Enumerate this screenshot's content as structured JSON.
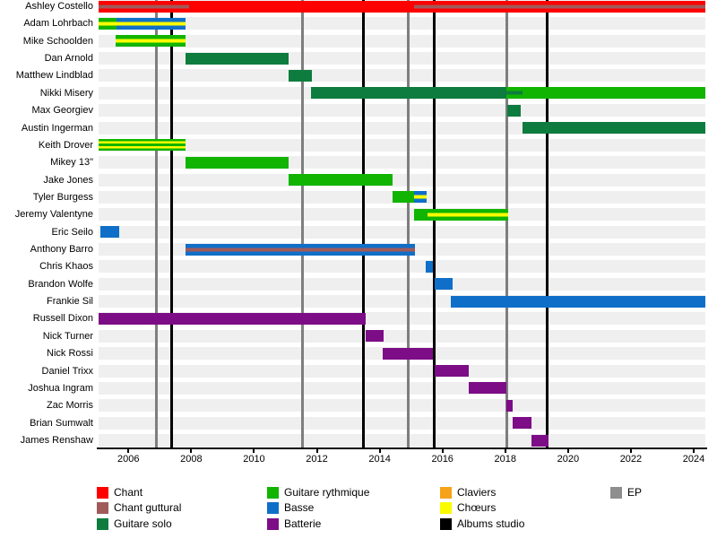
{
  "chart_data": {
    "type": "gantt-timeline",
    "title": "",
    "x_axis": {
      "start": 2005.05,
      "end": 2024.37,
      "ticks": [
        2006,
        2008,
        2010,
        2012,
        2014,
        2016,
        2018,
        2020,
        2022,
        2024
      ],
      "tick_labels": [
        "2006",
        "2008",
        "2010",
        "2012",
        "2014",
        "2016",
        "2018",
        "2020",
        "2022",
        "2024"
      ]
    },
    "palette": {
      "chant": "#fe0000",
      "chant_guttural": "#a05a5a",
      "guitare_solo": "#0e7c3e",
      "guitare_rythmique": "#11b400",
      "basse": "#0f6fc8",
      "batterie": "#7d0d86",
      "claviers": "#f6a21a",
      "choeurs": "#fbfb00",
      "albums_studio": "#000000",
      "ep": "#8e8e8e"
    },
    "album_lines": {
      "label": "Albums studio",
      "years": [
        2007.39,
        2013.47,
        2015.73,
        2019.32
      ]
    },
    "ep_lines": {
      "label": "EP",
      "years": [
        2006.88,
        2011.53,
        2014.91,
        2018.05
      ]
    },
    "members": [
      {
        "name": "Ashley Costello",
        "segments": [
          {
            "from": 2005.05,
            "to": 2007.93,
            "roles": [
              "chant",
              "chant_guttural",
              "chant"
            ]
          },
          {
            "from": 2007.93,
            "to": 2015.1,
            "roles": [
              "chant"
            ]
          },
          {
            "from": 2015.1,
            "to": 2024.37,
            "roles": [
              "chant",
              "chant_guttural",
              "chant"
            ]
          }
        ]
      },
      {
        "name": "Adam Lohrbach",
        "segments": [
          {
            "from": 2005.05,
            "to": 2005.62,
            "roles": [
              "guitare_rythmique",
              "choeurs",
              "guitare_rythmique"
            ]
          },
          {
            "from": 2005.62,
            "to": 2007.82,
            "roles": [
              "basse",
              "choeurs",
              "basse"
            ]
          }
        ]
      },
      {
        "name": "Mike Schoolden",
        "segments": [
          {
            "from": 2005.59,
            "to": 2007.82,
            "roles": [
              "guitare_rythmique",
              "choeurs",
              "guitare_rythmique"
            ]
          }
        ]
      },
      {
        "name": "Dan Arnold",
        "segments": [
          {
            "from": 2007.82,
            "to": 2011.1,
            "roles": [
              "guitare_solo"
            ]
          }
        ]
      },
      {
        "name": "Matthew Lindblad",
        "segments": [
          {
            "from": 2011.1,
            "to": 2011.84,
            "roles": [
              "guitare_solo"
            ]
          }
        ]
      },
      {
        "name": "Nikki Misery",
        "segments": [
          {
            "from": 2011.81,
            "to": 2018.04,
            "roles": [
              "guitare_solo"
            ]
          },
          {
            "from": 2018.04,
            "to": 2024.37,
            "roles": [
              "guitare_rythmique"
            ]
          },
          {
            "from": 2018.04,
            "to": 2018.55,
            "roles": [
              "guitare_rythmique",
              "guitare_solo",
              "guitare_rythmique"
            ]
          }
        ]
      },
      {
        "name": "Max Georgiev",
        "segments": [
          {
            "from": 2018.05,
            "to": 2018.5,
            "roles": [
              "guitare_solo"
            ]
          }
        ]
      },
      {
        "name": "Austin Ingerman",
        "segments": [
          {
            "from": 2018.55,
            "to": 2024.37,
            "roles": [
              "guitare_solo"
            ]
          }
        ]
      },
      {
        "name": "Keith Drover",
        "segments": [
          {
            "from": 2005.05,
            "to": 2007.82,
            "roles": [
              "guitare_rythmique",
              "choeurs",
              "guitare_rythmique",
              "choeurs",
              "guitare_rythmique"
            ]
          }
        ]
      },
      {
        "name": "Mikey 13\"",
        "segments": [
          {
            "from": 2007.82,
            "to": 2011.1,
            "roles": [
              "guitare_rythmique"
            ]
          }
        ]
      },
      {
        "name": "Jake Jones",
        "segments": [
          {
            "from": 2011.1,
            "to": 2014.41,
            "roles": [
              "guitare_rythmique"
            ]
          }
        ]
      },
      {
        "name": "Tyler Burgess",
        "segments": [
          {
            "from": 2014.41,
            "to": 2015.1,
            "roles": [
              "guitare_rythmique"
            ]
          },
          {
            "from": 2015.1,
            "to": 2015.5,
            "roles": [
              "basse",
              "choeurs",
              "basse"
            ]
          }
        ]
      },
      {
        "name": "Jeremy Valentyne",
        "segments": [
          {
            "from": 2015.1,
            "to": 2015.53,
            "roles": [
              "guitare_rythmique"
            ]
          },
          {
            "from": 2015.53,
            "to": 2018.1,
            "roles": [
              "guitare_rythmique",
              "choeurs",
              "guitare_rythmique"
            ]
          }
        ]
      },
      {
        "name": "Eric Seilo",
        "segments": [
          {
            "from": 2005.1,
            "to": 2005.71,
            "roles": [
              "basse"
            ]
          }
        ]
      },
      {
        "name": "Anthony Barro",
        "segments": [
          {
            "from": 2007.82,
            "to": 2015.13,
            "roles": [
              "basse",
              "chant_guttural",
              "basse"
            ]
          }
        ]
      },
      {
        "name": "Chris Khaos",
        "segments": [
          {
            "from": 2015.47,
            "to": 2015.7,
            "roles": [
              "basse"
            ]
          }
        ]
      },
      {
        "name": "Brandon Wolfe",
        "segments": [
          {
            "from": 2015.75,
            "to": 2016.32,
            "roles": [
              "basse"
            ]
          }
        ]
      },
      {
        "name": "Frankie Sil",
        "segments": [
          {
            "from": 2016.27,
            "to": 2024.37,
            "roles": [
              "basse"
            ]
          }
        ]
      },
      {
        "name": "Russell Dixon",
        "segments": [
          {
            "from": 2005.05,
            "to": 2013.55,
            "roles": [
              "batterie"
            ]
          }
        ]
      },
      {
        "name": "Nick Turner",
        "segments": [
          {
            "from": 2013.55,
            "to": 2014.13,
            "roles": [
              "batterie"
            ]
          }
        ]
      },
      {
        "name": "Nick Rossi",
        "segments": [
          {
            "from": 2014.1,
            "to": 2015.7,
            "roles": [
              "batterie"
            ]
          }
        ]
      },
      {
        "name": "Daniel Trixx",
        "segments": [
          {
            "from": 2015.75,
            "to": 2016.84,
            "roles": [
              "batterie"
            ]
          }
        ]
      },
      {
        "name": "Joshua Ingram",
        "segments": [
          {
            "from": 2016.84,
            "to": 2018.04,
            "roles": [
              "batterie"
            ]
          }
        ]
      },
      {
        "name": "Zac Morris",
        "segments": [
          {
            "from": 2018.04,
            "to": 2018.24,
            "roles": [
              "batterie"
            ]
          }
        ]
      },
      {
        "name": "Brian Sumwalt",
        "segments": [
          {
            "from": 2018.24,
            "to": 2018.84,
            "roles": [
              "batterie"
            ]
          }
        ]
      },
      {
        "name": "James Renshaw",
        "segments": [
          {
            "from": 2018.84,
            "to": 2019.38,
            "roles": [
              "batterie"
            ]
          }
        ]
      }
    ]
  },
  "legend": {
    "columns": [
      [
        {
          "label": "Chant",
          "color": "chant"
        },
        {
          "label": "Chant guttural",
          "color": "chant_guttural"
        },
        {
          "label": "Guitare solo",
          "color": "guitare_solo"
        }
      ],
      [
        {
          "label": "Guitare rythmique",
          "color": "guitare_rythmique"
        },
        {
          "label": "Basse",
          "color": "basse"
        },
        {
          "label": "Batterie",
          "color": "batterie"
        }
      ],
      [
        {
          "label": "Claviers",
          "color": "claviers"
        },
        {
          "label": "Chœurs",
          "color": "choeurs"
        },
        {
          "label": "Albums studio",
          "color": "albums_studio"
        }
      ],
      [
        {
          "label": "EP",
          "color": "ep"
        }
      ]
    ]
  }
}
